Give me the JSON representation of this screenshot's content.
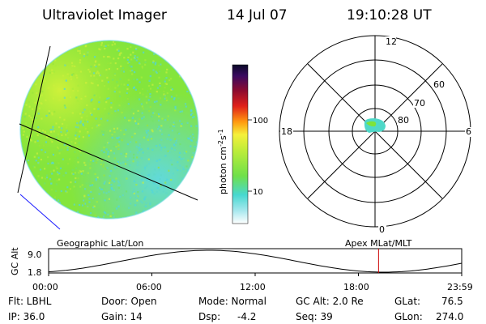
{
  "header": {
    "title": "Ultraviolet Imager",
    "date": "14 Jul 07",
    "time": "19:10:28 UT"
  },
  "colorbar": {
    "label": "photon cm",
    "exp1": "-2",
    "mid": "s",
    "exp2": "-1",
    "ticks": [
      "100",
      "10"
    ],
    "scale": "log"
  },
  "polar": {
    "hour_labels": {
      "top": "12",
      "bottom": "0",
      "left": "18",
      "right": "6"
    },
    "lat_labels": [
      "60",
      "70",
      "80"
    ]
  },
  "alt_plot": {
    "left_title": "Geographic Lat/Lon",
    "right_title": "Apex MLat/MLT",
    "y_axis_label": "GC Alt",
    "y_ticks": [
      "9.0",
      "1.8"
    ],
    "x_ticks": [
      "00:00",
      "06:00",
      "12:00",
      "18:00",
      "23:59"
    ],
    "current_time_hours": 19.17
  },
  "info": {
    "col1": [
      "Flt: LBHL",
      "IP: 36.0"
    ],
    "col2": [
      "Door: Open",
      "Gain: 14"
    ],
    "col3": [
      "Mode: Normal",
      "Dsp:"
    ],
    "dsp_value": "-4.2",
    "col4": [
      "GC Alt: 2.0 Re",
      "Seq: 39"
    ],
    "col5": [
      "GLat:",
      "GLon:"
    ],
    "col6": [
      "76.5",
      "274.0"
    ]
  },
  "colors": {
    "accent": "#cc0000",
    "image_base": "#7ee33a",
    "image_highlight": "#c8f03a",
    "image_low": "#66dfd8",
    "track": "#1a1aff"
  }
}
